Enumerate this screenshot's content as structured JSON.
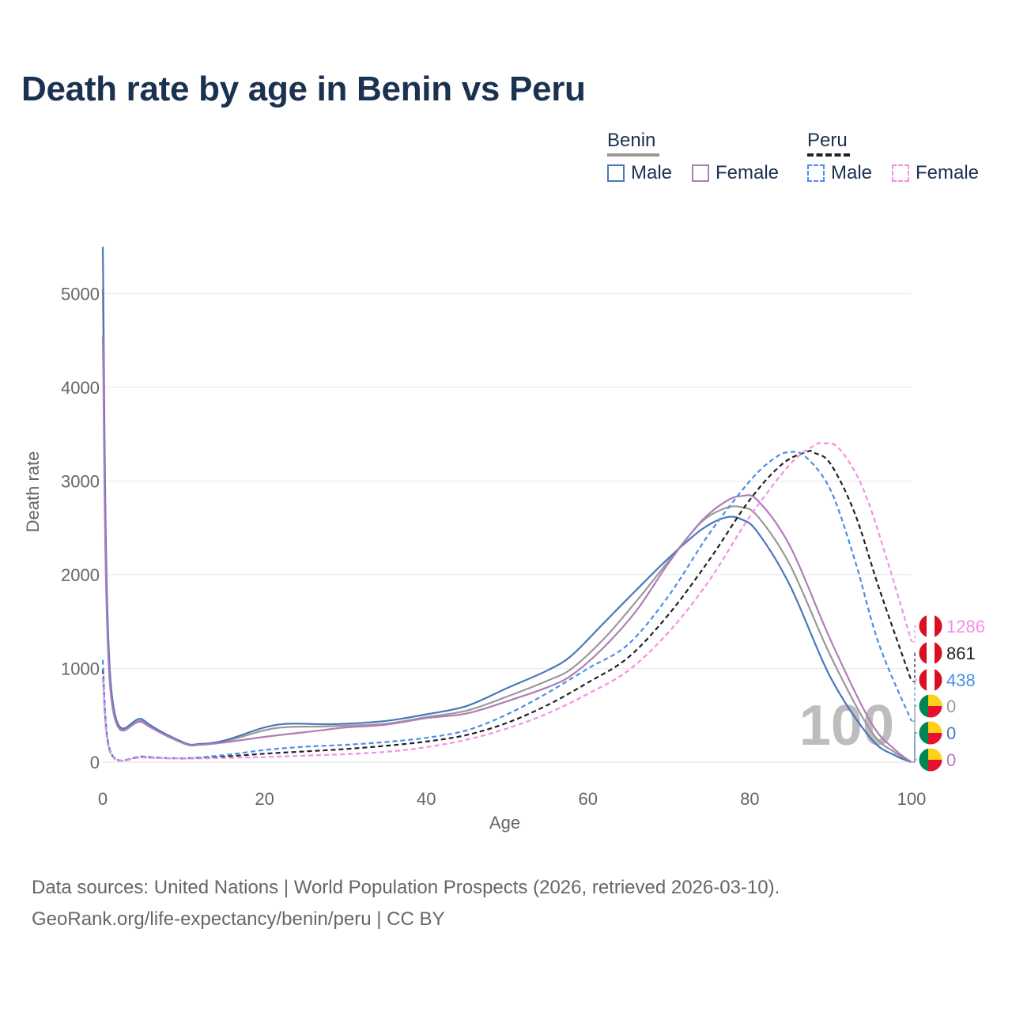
{
  "title": "Death rate by age in Benin vs Peru",
  "legend": {
    "groups": [
      {
        "name": "Benin",
        "line_color": "#999999",
        "dash": false,
        "items": [
          {
            "label": "Male",
            "color": "#4a77bd",
            "dash": false
          },
          {
            "label": "Female",
            "color": "#b07cb8",
            "dash": false
          }
        ]
      },
      {
        "name": "Peru",
        "line_color": "#222222",
        "dash": true,
        "items": [
          {
            "label": "Male",
            "color": "#4a8fe6",
            "dash": true
          },
          {
            "label": "Female",
            "color": "#f58ee6",
            "dash": true
          }
        ]
      }
    ]
  },
  "chart_data": {
    "type": "line",
    "xlabel": "Age",
    "ylabel": "Death rate",
    "xlim": [
      0,
      100
    ],
    "ylim": [
      0,
      5500
    ],
    "x_ticks": [
      0,
      20,
      40,
      60,
      80,
      100
    ],
    "y_ticks": [
      0,
      1000,
      2000,
      3000,
      4000,
      5000
    ],
    "grid": true,
    "watermark": "100",
    "series": [
      {
        "name": "Benin Total",
        "color": "#999999",
        "dash": false,
        "x": [
          0,
          1,
          5,
          10,
          12,
          15,
          20,
          23,
          27,
          30,
          35,
          40,
          45,
          50,
          55,
          58,
          62,
          66,
          70,
          74,
          77,
          79,
          81,
          85,
          90,
          95,
          98,
          100
        ],
        "y": [
          5050,
          760,
          430,
          205,
          190,
          220,
          340,
          375,
          380,
          390,
          410,
          480,
          550,
          700,
          870,
          1000,
          1320,
          1720,
          2150,
          2560,
          2710,
          2720,
          2620,
          2100,
          1130,
          330,
          100,
          0
        ],
        "end_value": "0"
      },
      {
        "name": "Benin Male",
        "color": "#4a77bd",
        "dash": false,
        "x": [
          0,
          1,
          5,
          10,
          12,
          15,
          20,
          23,
          27,
          30,
          35,
          40,
          45,
          50,
          55,
          58,
          62,
          66,
          70,
          74,
          77,
          79,
          81,
          85,
          90,
          95,
          98,
          100
        ],
        "y": [
          5500,
          830,
          450,
          210,
          195,
          230,
          370,
          410,
          405,
          410,
          440,
          510,
          600,
          790,
          980,
          1140,
          1490,
          1840,
          2180,
          2480,
          2610,
          2590,
          2450,
          1880,
          900,
          250,
          70,
          0
        ],
        "end_value": "0"
      },
      {
        "name": "Benin Female",
        "color": "#b07cb8",
        "dash": false,
        "x": [
          0,
          1,
          5,
          10,
          12,
          15,
          20,
          23,
          27,
          30,
          35,
          40,
          45,
          50,
          55,
          58,
          62,
          66,
          70,
          74,
          77,
          79,
          81,
          85,
          90,
          95,
          98,
          100
        ],
        "y": [
          4550,
          720,
          420,
          200,
          185,
          210,
          270,
          300,
          340,
          370,
          400,
          470,
          520,
          650,
          800,
          930,
          1230,
          1620,
          2130,
          2570,
          2780,
          2840,
          2790,
          2300,
          1300,
          420,
          130,
          0
        ],
        "end_value": "0"
      },
      {
        "name": "Peru Total",
        "color": "#222222",
        "dash": true,
        "x": [
          0,
          1,
          5,
          10,
          15,
          20,
          25,
          30,
          35,
          40,
          45,
          50,
          55,
          60,
          65,
          70,
          75,
          80,
          84,
          87,
          88,
          90,
          93,
          96,
          100
        ],
        "y": [
          990,
          95,
          55,
          40,
          60,
          90,
          115,
          140,
          175,
          220,
          290,
          420,
          610,
          850,
          1120,
          1580,
          2160,
          2800,
          3180,
          3310,
          3300,
          3180,
          2650,
          1850,
          861
        ],
        "end_value": "861"
      },
      {
        "name": "Peru Male",
        "color": "#4a8fe6",
        "dash": true,
        "x": [
          0,
          1,
          5,
          10,
          15,
          20,
          25,
          30,
          35,
          40,
          45,
          50,
          55,
          60,
          65,
          70,
          75,
          80,
          83,
          85,
          87,
          90,
          93,
          96,
          100
        ],
        "y": [
          1090,
          105,
          60,
          42,
          75,
          130,
          165,
          185,
          215,
          260,
          340,
          510,
          740,
          1000,
          1260,
          1780,
          2440,
          3000,
          3240,
          3310,
          3250,
          2900,
          2150,
          1250,
          438
        ],
        "end_value": "438"
      },
      {
        "name": "Peru Female",
        "color": "#f58ee6",
        "dash": true,
        "x": [
          0,
          1,
          5,
          10,
          15,
          20,
          25,
          30,
          35,
          40,
          45,
          50,
          55,
          60,
          65,
          70,
          75,
          80,
          85,
          88,
          89,
          91,
          94,
          97,
          100
        ],
        "y": [
          890,
          85,
          50,
          38,
          45,
          55,
          70,
          85,
          110,
          160,
          240,
          360,
          520,
          730,
          980,
          1390,
          1940,
          2620,
          3180,
          3380,
          3400,
          3350,
          2920,
          2150,
          1286
        ],
        "end_value": "1286"
      }
    ],
    "end_labels": [
      {
        "text": "1286",
        "color": "#f58ee6",
        "flag": "peru"
      },
      {
        "text": "861",
        "color": "#222222",
        "flag": "peru"
      },
      {
        "text": "438",
        "color": "#4a8fe6",
        "flag": "peru"
      },
      {
        "text": "0",
        "color": "#999999",
        "flag": "benin"
      },
      {
        "text": "0",
        "color": "#4a77bd",
        "flag": "benin"
      },
      {
        "text": "0",
        "color": "#b07cb8",
        "flag": "benin"
      }
    ]
  },
  "footer": {
    "line1": "Data sources: United Nations | World Population Prospects (2026, retrieved 2026-03-10).",
    "line2": "GeoRank.org/life-expectancy/benin/peru | CC BY"
  }
}
